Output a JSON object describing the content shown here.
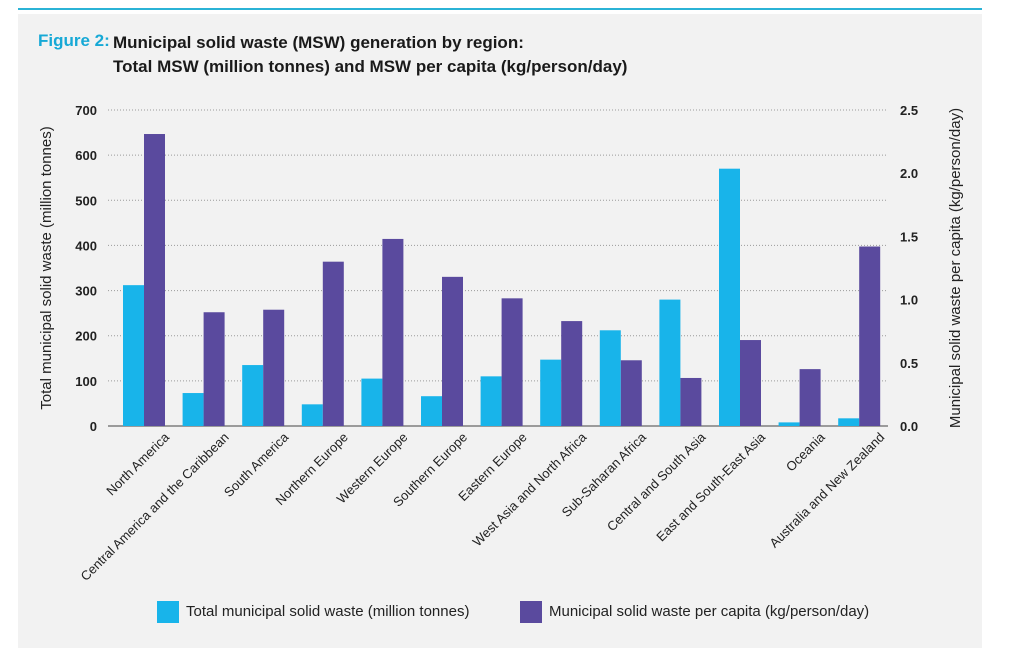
{
  "figure": {
    "label": "Figure 2:",
    "title_line1": "Municipal solid waste (MSW) generation by region:",
    "title_line2": "Total MSW (million tonnes) and MSW per capita (kg/person/day)"
  },
  "colors": {
    "total": "#18b4ea",
    "per_capita": "#5a4a9e",
    "accent": "#17a9d6"
  },
  "chart_data": {
    "type": "bar",
    "categories": [
      "North America",
      "Central America and the Caribbean",
      "South America",
      "Northern Europe",
      "Western Europe",
      "Southern Europe",
      "Eastern Europe",
      "West Asia and North Africa",
      "Sub-Saharan Africa",
      "Central and South Asia",
      "East and South-East Asia",
      "Oceania",
      "Australia and New Zealand"
    ],
    "series": [
      {
        "name": "Total municipal solid waste (million tonnes)",
        "axis": "left",
        "values": [
          312,
          73,
          135,
          48,
          105,
          66,
          110,
          147,
          212,
          280,
          570,
          8,
          17
        ]
      },
      {
        "name": "Municipal solid waste per capita (kg/person/day)",
        "axis": "right",
        "values": [
          2.31,
          0.9,
          0.92,
          1.3,
          1.48,
          1.18,
          1.01,
          0.83,
          0.52,
          0.38,
          0.68,
          0.45,
          1.42
        ]
      }
    ],
    "ylabel": "Total municipal solid waste  (million tonnes)",
    "ylim": [
      0,
      700
    ],
    "yticks": [
      "0",
      "100",
      "200",
      "300",
      "400",
      "500",
      "600",
      "700"
    ],
    "y2label": "Municipal solid waste per capita (kg/person/day)",
    "y2lim": [
      0,
      2.5
    ],
    "y2ticks": [
      "0.0",
      "0.5",
      "1.0",
      "1.5",
      "2.0",
      "2.5"
    ],
    "grid": "dotted horizontal",
    "legend_position": "bottom"
  }
}
